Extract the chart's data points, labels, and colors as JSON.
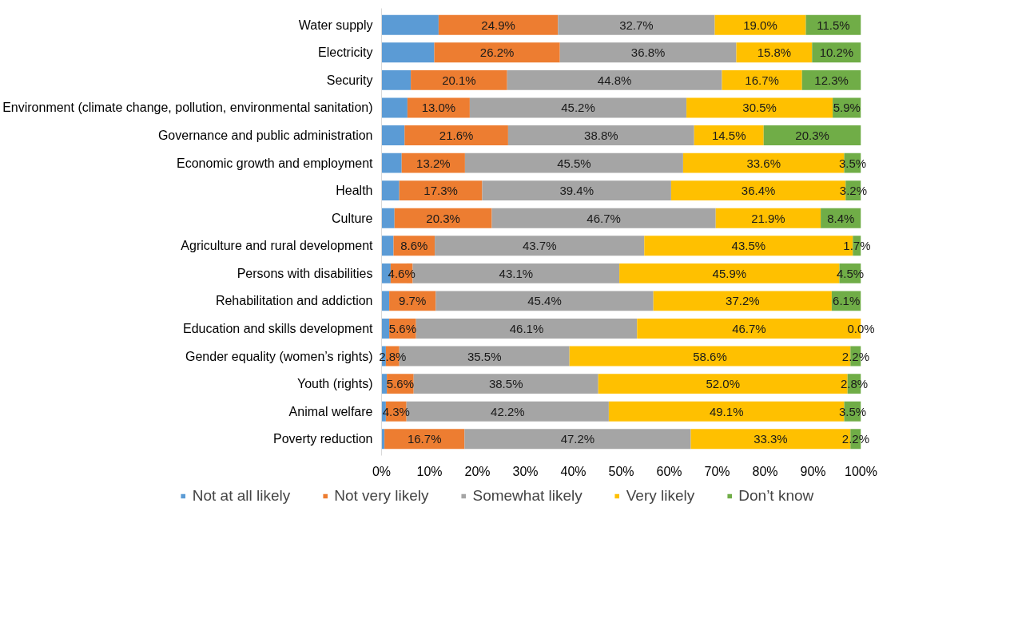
{
  "chart_data": {
    "type": "bar",
    "orientation": "horizontal",
    "stacked": true,
    "categories": [
      "Water supply",
      "Electricity",
      "Security",
      "Environment (climate change, pollution, environmental sanitation)",
      "Governance and public administration",
      "Economic growth and employment",
      "Health",
      "Culture",
      "Agriculture and rural development",
      "Persons with disabilities",
      "Rehabilitation and addiction",
      "Education and skills development",
      "Gender equality (women’s rights)",
      "Youth (rights)",
      "Animal welfare",
      "Poverty reduction"
    ],
    "series": [
      {
        "name": "Not at all likely",
        "color": "#5b9bd5",
        "values": [
          11.9,
          11.0,
          6.1,
          5.4,
          4.8,
          4.2,
          3.7,
          2.7,
          2.5,
          1.9,
          1.6,
          1.6,
          0.9,
          1.1,
          0.9,
          0.6
        ],
        "value_labels": [
          null,
          null,
          null,
          null,
          null,
          null,
          null,
          null,
          null,
          null,
          null,
          null,
          null,
          null,
          null,
          null
        ]
      },
      {
        "name": "Not very likely",
        "color": "#ed7d31",
        "values": [
          24.9,
          26.2,
          20.1,
          13.0,
          21.6,
          13.2,
          17.3,
          20.3,
          8.6,
          4.6,
          9.7,
          5.6,
          2.8,
          5.6,
          4.3,
          16.7
        ],
        "value_labels": [
          "24.9%",
          "26.2%",
          "20.1%",
          "13.0%",
          "21.6%",
          "13.2%",
          "17.3%",
          "20.3%",
          "8.6%",
          "4.6%",
          "9.7%",
          "5.6%",
          "2.8%",
          "5.6%",
          "4.3%",
          "16.7%"
        ]
      },
      {
        "name": "Somewhat likely",
        "color": "#a5a5a5",
        "values": [
          32.7,
          36.8,
          44.8,
          45.2,
          38.8,
          45.5,
          39.4,
          46.7,
          43.7,
          43.1,
          45.4,
          46.1,
          35.5,
          38.5,
          42.2,
          47.2
        ],
        "value_labels": [
          "32.7%",
          "36.8%",
          "44.8%",
          "45.2%",
          "38.8%",
          "45.5%",
          "39.4%",
          "46.7%",
          "43.7%",
          "43.1%",
          "45.4%",
          "46.1%",
          "35.5%",
          "38.5%",
          "42.2%",
          "47.2%"
        ]
      },
      {
        "name": "Very likely",
        "color": "#ffc000",
        "values": [
          19.0,
          15.8,
          16.7,
          30.5,
          14.5,
          33.6,
          36.4,
          21.9,
          43.5,
          45.9,
          37.2,
          46.7,
          58.6,
          52.0,
          49.1,
          33.3
        ],
        "value_labels": [
          "19.0%",
          "15.8%",
          "16.7%",
          "30.5%",
          "14.5%",
          "33.6%",
          "36.4%",
          "21.9%",
          "43.5%",
          "45.9%",
          "37.2%",
          "46.7%",
          "58.6%",
          "52.0%",
          "49.1%",
          "33.3%"
        ]
      },
      {
        "name": "Don’t know",
        "color": "#70ad47",
        "values": [
          11.5,
          10.2,
          12.3,
          5.9,
          20.3,
          3.5,
          3.2,
          8.4,
          1.7,
          4.5,
          6.1,
          0.0,
          2.2,
          2.8,
          3.5,
          2.2
        ],
        "value_labels": [
          "11.5%",
          "10.2%",
          "12.3%",
          "5.9%",
          "20.3%",
          "3.5%",
          "3.2%",
          "8.4%",
          "1.7%",
          "4.5%",
          "6.1%",
          "0.0%",
          "2.2%",
          "2.8%",
          "3.5%",
          "2.2%"
        ]
      }
    ],
    "xlim": [
      0,
      100
    ],
    "xticks": [
      {
        "value": 0,
        "label": "0%"
      },
      {
        "value": 10,
        "label": "10%"
      },
      {
        "value": 20,
        "label": "20%"
      },
      {
        "value": 30,
        "label": "30%"
      },
      {
        "value": 40,
        "label": "40%"
      },
      {
        "value": 50,
        "label": "50%"
      },
      {
        "value": 60,
        "label": "60%"
      },
      {
        "value": 70,
        "label": "70%"
      },
      {
        "value": 80,
        "label": "80%"
      },
      {
        "value": 90,
        "label": "90%"
      },
      {
        "value": 100,
        "label": "100%"
      }
    ],
    "grid": false,
    "legend": "bottom"
  }
}
